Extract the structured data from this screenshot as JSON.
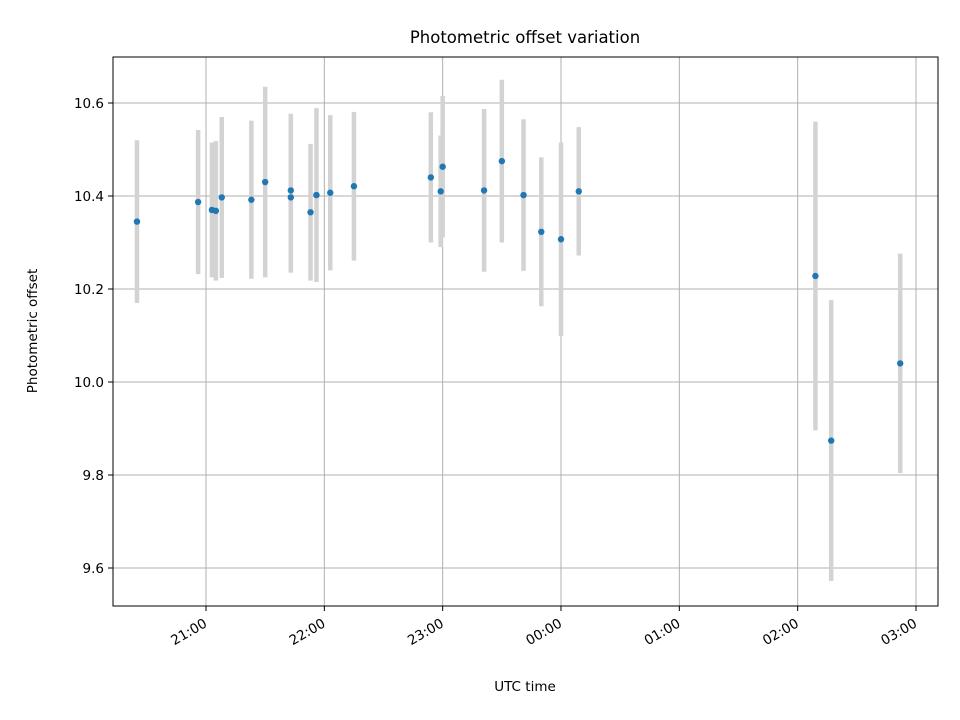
{
  "chart_data": {
    "type": "scatter",
    "title": "Photometric offset variation",
    "xlabel": "UTC time",
    "ylabel": "Photometric offset",
    "x_ticks": [
      "21:00",
      "22:00",
      "23:00",
      "00:00",
      "01:00",
      "02:00",
      "03:00"
    ],
    "y_ticks": [
      "9.6",
      "9.8",
      "10.0",
      "10.2",
      "10.4",
      "10.6"
    ],
    "grid": true,
    "colors": {
      "points": "#1f77b4",
      "errorbars": "#d3d3d3",
      "grid": "#b0b0b0"
    },
    "points": [
      {
        "t": "20:25",
        "y": 10.345,
        "err": 0.175
      },
      {
        "t": "20:56",
        "y": 10.387,
        "err": 0.155
      },
      {
        "t": "21:03",
        "y": 10.37,
        "err": 0.145
      },
      {
        "t": "21:05",
        "y": 10.368,
        "err": 0.15
      },
      {
        "t": "21:08",
        "y": 10.397,
        "err": 0.173
      },
      {
        "t": "21:23",
        "y": 10.392,
        "err": 0.17
      },
      {
        "t": "21:30",
        "y": 10.43,
        "err": 0.205
      },
      {
        "t": "21:43",
        "y": 10.397,
        "err": 0.162
      },
      {
        "t": "21:43",
        "y": 10.412,
        "err": 0.165
      },
      {
        "t": "21:53",
        "y": 10.365,
        "err": 0.147
      },
      {
        "t": "21:56",
        "y": 10.402,
        "err": 0.187
      },
      {
        "t": "22:03",
        "y": 10.407,
        "err": 0.167
      },
      {
        "t": "22:15",
        "y": 10.421,
        "err": 0.16
      },
      {
        "t": "22:54",
        "y": 10.44,
        "err": 0.14
      },
      {
        "t": "22:59",
        "y": 10.41,
        "err": 0.12
      },
      {
        "t": "23:00",
        "y": 10.463,
        "err": 0.152
      },
      {
        "t": "23:21",
        "y": 10.412,
        "err": 0.175
      },
      {
        "t": "23:30",
        "y": 10.475,
        "err": 0.175
      },
      {
        "t": "23:41",
        "y": 10.402,
        "err": 0.163
      },
      {
        "t": "23:50",
        "y": 10.323,
        "err": 0.16
      },
      {
        "t": "24:00",
        "y": 10.307,
        "err": 0.208
      },
      {
        "t": "24:09",
        "y": 10.41,
        "err": 0.138
      },
      {
        "t": "26:09",
        "y": 10.228,
        "err": 0.332
      },
      {
        "t": "26:17",
        "y": 9.874,
        "err": 0.302
      },
      {
        "t": "26:52",
        "y": 10.04,
        "err": 0.236
      }
    ]
  }
}
